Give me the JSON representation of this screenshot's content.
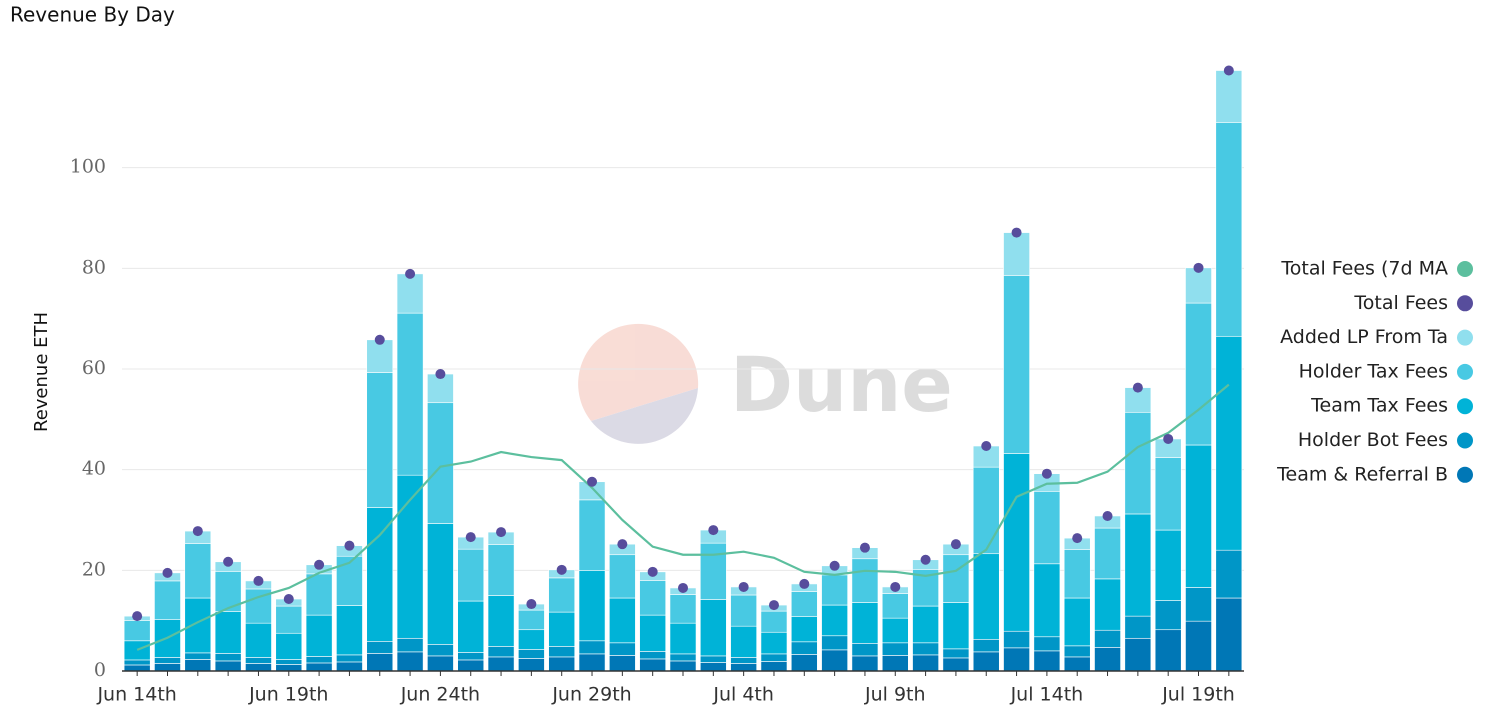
{
  "chart_data": {
    "type": "bar",
    "stacked": true,
    "title": "Revenue By Day",
    "y_label": "Revenue ETH",
    "watermark": "Dune",
    "categories": [
      "Jun 14th",
      null,
      null,
      null,
      null,
      "Jun 19th",
      null,
      null,
      null,
      null,
      "Jun 24th",
      null,
      null,
      null,
      null,
      "Jun 29th",
      null,
      null,
      null,
      null,
      "Jul 4th",
      null,
      null,
      null,
      null,
      "Jul 9th",
      null,
      null,
      null,
      null,
      "Jul 14th",
      null,
      null,
      null,
      null,
      "Jul 19th",
      null
    ],
    "ylim": [
      0,
      120
    ],
    "yticks": [
      0,
      20,
      40,
      60,
      80,
      100
    ],
    "grid": true,
    "series": [
      {
        "name": "Total Fees (7d MA",
        "type": "line",
        "color": "#5cbf9e",
        "values": [
          4.2,
          6.6,
          9.7,
          12.5,
          14.7,
          16.5,
          19.5,
          21.5,
          27.0,
          34.0,
          40.6,
          41.6,
          43.5,
          42.5,
          41.9,
          36.4,
          30.0,
          24.7,
          23.1,
          23.1,
          23.7,
          22.5,
          19.7,
          19.1,
          19.9,
          19.7,
          18.9,
          19.9,
          24.1,
          34.6,
          37.2,
          37.4,
          39.6,
          44.5,
          47.3,
          51.9,
          56.9
        ]
      },
      {
        "name": "Total Fees",
        "type": "dot",
        "color": "#574d9c",
        "values": [
          10.9,
          19.5,
          27.8,
          21.7,
          17.9,
          14.3,
          21.1,
          24.9,
          65.8,
          78.9,
          59.0,
          26.6,
          27.6,
          13.3,
          20.1,
          37.6,
          25.2,
          19.7,
          16.5,
          28.0,
          16.7,
          13.1,
          17.3,
          20.9,
          24.5,
          16.7,
          22.1,
          25.2,
          44.7,
          87.1,
          39.2,
          26.4,
          30.8,
          56.3,
          46.1,
          80.1,
          119.3
        ]
      },
      {
        "name": "Added LP From Ta",
        "type": "bar",
        "color": "#90dfee",
        "values": [
          0.9,
          1.6,
          2.5,
          1.9,
          1.6,
          1.4,
          1.8,
          2.1,
          6.5,
          7.8,
          5.7,
          2.4,
          2.5,
          1.2,
          1.6,
          3.6,
          2.1,
          1.7,
          1.3,
          2.6,
          1.6,
          1.2,
          1.5,
          1.8,
          2.2,
          1.3,
          1.9,
          2.1,
          4.2,
          8.5,
          3.5,
          2.3,
          2.4,
          4.9,
          3.7,
          7.0,
          10.3
        ]
      },
      {
        "name": "Holder Tax Fees",
        "type": "bar",
        "color": "#48c9e3",
        "values": [
          4.0,
          7.7,
          10.8,
          8.0,
          6.8,
          5.4,
          8.2,
          9.8,
          26.8,
          32.2,
          24.0,
          10.3,
          10.1,
          3.9,
          6.8,
          14.0,
          8.6,
          6.9,
          5.7,
          11.2,
          6.2,
          4.2,
          5.0,
          6.0,
          8.7,
          4.9,
          7.3,
          9.5,
          17.2,
          35.4,
          14.4,
          9.6,
          10.1,
          20.2,
          14.4,
          28.2,
          42.5
        ]
      },
      {
        "name": "Team Tax Fees",
        "type": "bar",
        "color": "#00b3d7",
        "values": [
          3.8,
          7.5,
          10.9,
          8.3,
          6.8,
          5.2,
          8.2,
          9.8,
          26.6,
          32.4,
          24.0,
          10.2,
          10.1,
          3.9,
          6.8,
          14.0,
          8.9,
          7.2,
          6.1,
          11.2,
          6.2,
          4.3,
          5.0,
          6.1,
          8.1,
          4.9,
          7.3,
          9.2,
          17.0,
          35.3,
          14.5,
          9.5,
          10.2,
          20.3,
          14.0,
          28.3,
          42.5
        ]
      },
      {
        "name": "Holder Bot Fees",
        "type": "bar",
        "color": "#0096c7",
        "values": [
          1.0,
          1.2,
          1.3,
          1.5,
          1.2,
          1.0,
          1.3,
          1.4,
          2.4,
          2.7,
          2.3,
          1.5,
          2.1,
          1.8,
          2.1,
          2.6,
          2.5,
          1.5,
          1.4,
          1.3,
          1.2,
          1.5,
          2.5,
          2.8,
          2.5,
          2.5,
          2.4,
          1.8,
          2.5,
          3.3,
          2.8,
          2.2,
          3.4,
          4.4,
          5.8,
          6.7,
          9.5
        ]
      },
      {
        "name": "Team & Referral B",
        "type": "bar",
        "color": "#0077b6",
        "values": [
          1.2,
          1.5,
          2.3,
          2.0,
          1.5,
          1.3,
          1.6,
          1.8,
          3.5,
          3.8,
          3.0,
          2.2,
          2.8,
          2.5,
          2.8,
          3.4,
          3.1,
          2.4,
          2.0,
          1.7,
          1.5,
          1.9,
          3.3,
          4.2,
          3.0,
          3.1,
          3.2,
          2.6,
          3.8,
          4.6,
          4.0,
          2.8,
          4.7,
          6.5,
          8.2,
          9.9,
          14.5
        ]
      }
    ]
  }
}
